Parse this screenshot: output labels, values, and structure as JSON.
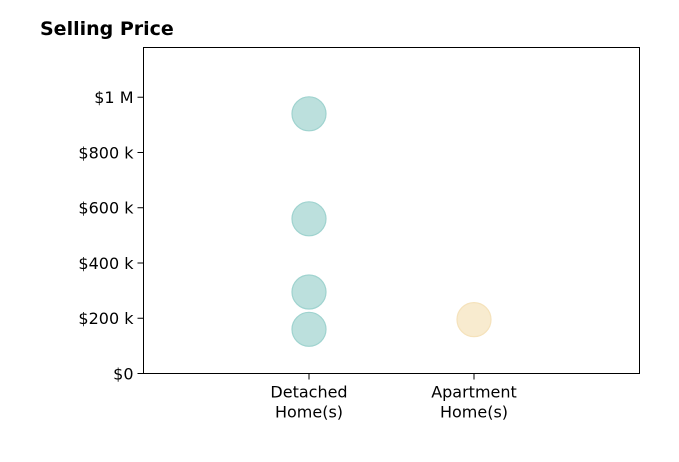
{
  "chart_data": {
    "type": "scatter",
    "title": "Selling Price",
    "xlabel": "",
    "ylabel": "",
    "categories": [
      [
        "Detached",
        "Home(s)"
      ],
      [
        "Apartment",
        "Home(s)"
      ]
    ],
    "y_ticks": [
      {
        "value": 0,
        "label": "$0"
      },
      {
        "value": 200000,
        "label": "$200 k"
      },
      {
        "value": 400000,
        "label": "$400 k"
      },
      {
        "value": 600000,
        "label": "$600 k"
      },
      {
        "value": 800000,
        "label": "$800 k"
      },
      {
        "value": 1000000,
        "label": "$1 M"
      }
    ],
    "ylim": [
      0,
      1180000
    ],
    "grid": false,
    "series": [
      {
        "category_index": 0,
        "color": "#9fd3cf",
        "values": [
          940000,
          560000,
          295000,
          160000
        ]
      },
      {
        "category_index": 1,
        "color": "#f5e2bb",
        "values": [
          195000
        ]
      }
    ]
  }
}
